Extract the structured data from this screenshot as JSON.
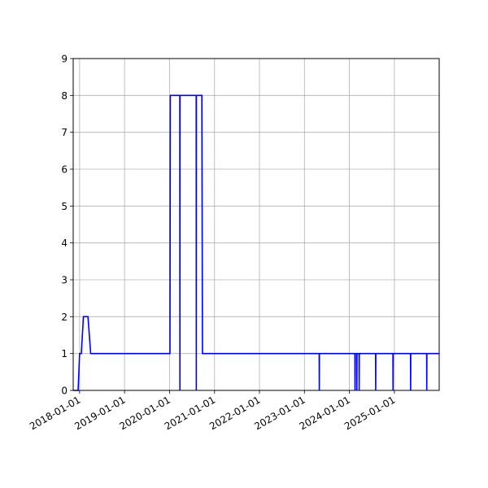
{
  "chart_data": {
    "type": "line",
    "title": "",
    "xlabel": "",
    "ylabel": "",
    "grid": true,
    "x_ticks": [
      "2018-01-01",
      "2019-01-01",
      "2020-01-01",
      "2021-01-01",
      "2022-01-01",
      "2023-01-01",
      "2024-01-01",
      "2025-01-01"
    ],
    "y_ticks": [
      "0",
      "1",
      "2",
      "3",
      "4",
      "5",
      "6",
      "7",
      "8",
      "9"
    ],
    "xlim": [
      "2017-11-10",
      "2025-12-31"
    ],
    "ylim": [
      0,
      9
    ],
    "series": [
      {
        "color": "#0000ff",
        "points": [
          [
            "2017-11-10",
            0
          ],
          [
            "2017-12-20",
            0
          ],
          [
            "2018-01-01",
            1
          ],
          [
            "2018-01-15",
            1
          ],
          [
            "2018-02-01",
            2
          ],
          [
            "2018-03-10",
            2
          ],
          [
            "2018-04-01",
            1
          ],
          [
            "2020-01-05",
            1
          ],
          [
            "2020-01-08",
            8
          ],
          [
            "2020-03-25",
            8
          ],
          [
            "2020-03-26",
            0
          ],
          [
            "2020-03-27",
            8
          ],
          [
            "2020-08-05",
            8
          ],
          [
            "2020-08-06",
            0
          ],
          [
            "2020-08-07",
            8
          ],
          [
            "2020-09-20",
            8
          ],
          [
            "2020-09-25",
            1
          ],
          [
            "2023-05-01",
            1
          ],
          [
            "2023-05-02",
            0
          ],
          [
            "2023-05-03",
            1
          ],
          [
            "2024-02-15",
            1
          ],
          [
            "2024-02-16",
            0
          ],
          [
            "2024-02-17",
            1
          ],
          [
            "2024-03-01",
            1
          ],
          [
            "2024-03-02",
            0
          ],
          [
            "2024-03-03",
            1
          ],
          [
            "2024-03-20",
            1
          ],
          [
            "2024-03-21",
            0
          ],
          [
            "2024-03-22",
            1
          ],
          [
            "2024-08-01",
            1
          ],
          [
            "2024-08-02",
            0
          ],
          [
            "2024-08-03",
            1
          ],
          [
            "2024-12-20",
            1
          ],
          [
            "2024-12-21",
            0
          ],
          [
            "2024-12-22",
            1
          ],
          [
            "2025-05-12",
            1
          ],
          [
            "2025-05-13",
            0
          ],
          [
            "2025-05-14",
            1
          ],
          [
            "2025-09-20",
            1
          ],
          [
            "2025-09-21",
            0
          ],
          [
            "2025-09-22",
            1
          ],
          [
            "2025-12-31",
            1
          ]
        ]
      }
    ]
  }
}
